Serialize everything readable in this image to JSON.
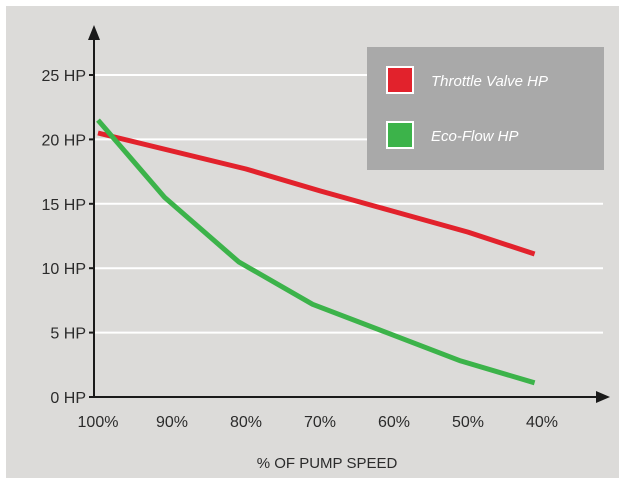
{
  "chart_data": {
    "type": "line",
    "title": "",
    "xlabel": "% OF PUMP SPEED",
    "ylabel": "",
    "categories": [
      "100%",
      "90%",
      "80%",
      "70%",
      "60%",
      "50%",
      "40%"
    ],
    "x_values": [
      100,
      90,
      80,
      70,
      60,
      50,
      40
    ],
    "xlim": [
      100,
      40
    ],
    "ylim": [
      0,
      25
    ],
    "y_ticks": [
      {
        "value": 0,
        "label": "0 HP"
      },
      {
        "value": 5,
        "label": "5 HP"
      },
      {
        "value": 10,
        "label": "10 HP"
      },
      {
        "value": 15,
        "label": "15 HP"
      },
      {
        "value": 20,
        "label": "20 HP"
      },
      {
        "value": 25,
        "label": "25 HP"
      }
    ],
    "grid": "horizontal",
    "legend_position": "top-right",
    "series": [
      {
        "name": "Throttle Valve HP",
        "color": "#e2222c",
        "points": [
          [
            100,
            20.5
          ],
          [
            80,
            17.7
          ],
          [
            70,
            16.0
          ],
          [
            60,
            14.4
          ],
          [
            50,
            12.8
          ],
          [
            41,
            11.1
          ]
        ]
      },
      {
        "name": "Eco-Flow HP",
        "color": "#3cb34a",
        "points": [
          [
            100,
            21.5
          ],
          [
            91,
            15.5
          ],
          [
            81,
            10.5
          ],
          [
            71,
            7.2
          ],
          [
            61,
            5.0
          ],
          [
            51,
            2.8
          ],
          [
            41,
            1.1
          ]
        ]
      }
    ]
  },
  "colors": {
    "background": "#dcdbd9",
    "legend_background": "#a9a9a9",
    "gridline": "#ffffff",
    "axis": "#1a1a1a"
  }
}
